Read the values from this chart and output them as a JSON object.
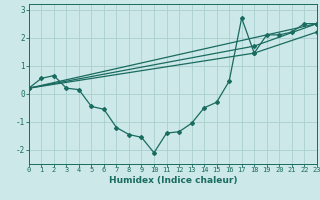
{
  "title": "",
  "xlabel": "Humidex (Indice chaleur)",
  "bg_color": "#cce8e8",
  "line_color": "#1a6b60",
  "grid_color": "#aacfcf",
  "series_main": {
    "x": [
      0,
      1,
      2,
      3,
      4,
      5,
      6,
      7,
      8,
      9,
      10,
      11,
      12,
      13,
      14,
      15,
      16,
      17,
      18,
      19,
      20,
      21,
      22,
      23
    ],
    "y": [
      0.2,
      0.55,
      0.65,
      0.2,
      0.15,
      -0.45,
      -0.55,
      -1.2,
      -1.45,
      -1.55,
      -2.1,
      -1.4,
      -1.35,
      -1.05,
      -0.5,
      -0.3,
      0.45,
      2.7,
      1.45,
      2.1,
      2.1,
      2.2,
      2.5,
      2.5
    ]
  },
  "series_lines": [
    {
      "x": [
        0,
        23
      ],
      "y": [
        0.2,
        2.5
      ]
    },
    {
      "x": [
        0,
        18,
        23
      ],
      "y": [
        0.2,
        1.7,
        2.5
      ]
    },
    {
      "x": [
        0,
        18,
        23
      ],
      "y": [
        0.2,
        1.45,
        2.2
      ]
    }
  ],
  "xlim": [
    0,
    23
  ],
  "ylim": [
    -2.5,
    3.2
  ],
  "yticks": [
    -2,
    -1,
    0,
    1,
    2,
    3
  ],
  "xticks": [
    0,
    1,
    2,
    3,
    4,
    5,
    6,
    7,
    8,
    9,
    10,
    11,
    12,
    13,
    14,
    15,
    16,
    17,
    18,
    19,
    20,
    21,
    22,
    23
  ],
  "xlabel_fontsize": 6.5,
  "tick_fontsize": 5.0,
  "ytick_fontsize": 5.5
}
